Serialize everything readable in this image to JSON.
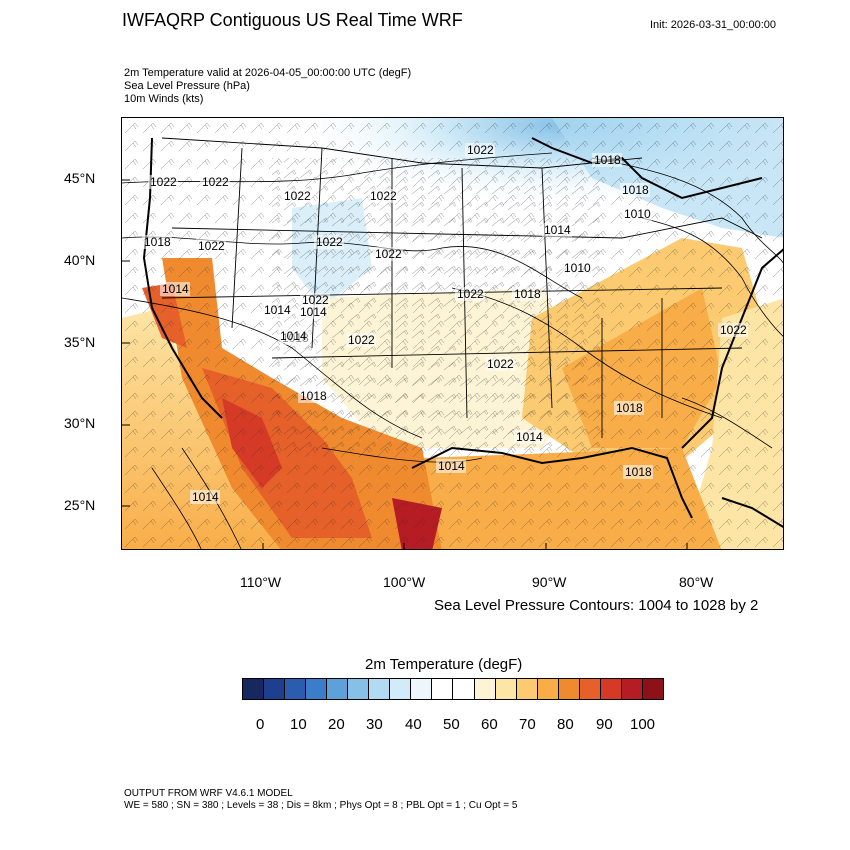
{
  "header": {
    "title": "IWFAQRP Contiguous US Real Time WRF",
    "init": "Init: 2026-03-31_00:00:00"
  },
  "fields": {
    "line1": "2m Temperature valid at 2026-04-05_00:00:00 UTC   (degF)",
    "line2": "Sea Level Pressure   (hPa)",
    "line3": "10m Winds   (kts)"
  },
  "map": {
    "lat_labels": [
      "45°N",
      "40°N",
      "35°N",
      "30°N",
      "25°N"
    ],
    "lon_labels": [
      "110°W",
      "100°W",
      "90°W",
      "80°W"
    ],
    "isobar_labels": [
      "1022",
      "1022",
      "1022",
      "1022",
      "1018",
      "1022",
      "1022",
      "1022",
      "1022",
      "1018",
      "1018",
      "1014",
      "1022",
      "1018",
      "1014",
      "1014",
      "1014",
      "1010",
      "1022",
      "1022",
      "1022",
      "1018",
      "1018",
      "1014",
      "1014",
      "1014",
      "1010",
      "1018",
      "1014",
      "1022",
      "1018"
    ]
  },
  "contour_note": "Sea Level Pressure Contours: 1004 to 1028 by 2",
  "colorbar": {
    "title": "2m Temperature  (degF)",
    "labels": [
      "0",
      "10",
      "20",
      "30",
      "40",
      "50",
      "60",
      "70",
      "80",
      "90",
      "100"
    ],
    "colors": [
      "#16285f",
      "#1e3f8f",
      "#2a5db0",
      "#3a7ec9",
      "#5ea1d8",
      "#86c0e6",
      "#b0dbf2",
      "#d1ebf8",
      "#ecf6fb",
      "#ffffff",
      "#ffffff",
      "#fdf4d6",
      "#fde5a5",
      "#fccb71",
      "#f9ad48",
      "#f08a2f",
      "#e6602a",
      "#d43a25",
      "#b51c24",
      "#8e1119"
    ]
  },
  "footer": {
    "line1": "OUTPUT FROM WRF V4.6.1 MODEL",
    "line2": "WE = 580 ; SN = 380 ; Levels = 38 ; Dis = 8km ; Phys Opt = 8 ; PBL Opt = 1 ; Cu Opt = 5"
  }
}
